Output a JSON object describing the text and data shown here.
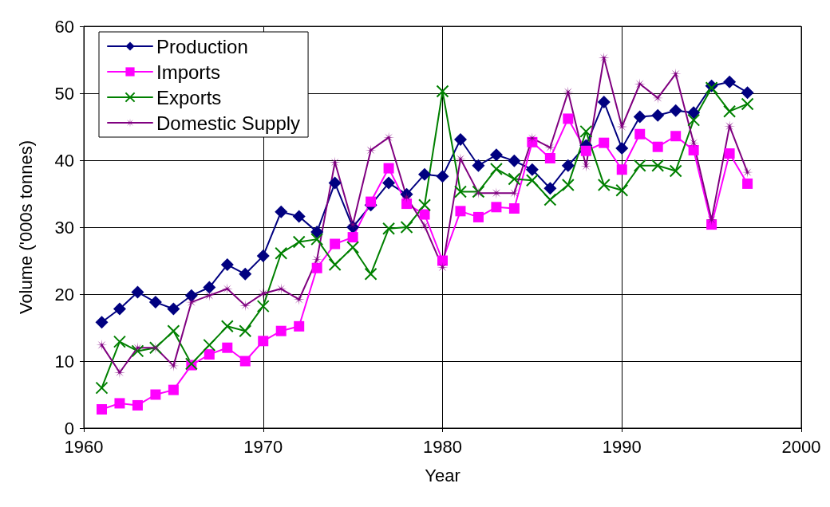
{
  "chart_data": {
    "type": "line",
    "xlabel": "Year",
    "ylabel": "Volume ('000s tonnes)",
    "x": [
      1961,
      1962,
      1963,
      1964,
      1965,
      1966,
      1967,
      1968,
      1969,
      1970,
      1971,
      1972,
      1973,
      1974,
      1975,
      1976,
      1977,
      1978,
      1979,
      1980,
      1981,
      1982,
      1983,
      1984,
      1985,
      1986,
      1987,
      1988,
      1989,
      1990,
      1991,
      1992,
      1993,
      1994,
      1995,
      1996,
      1997
    ],
    "series": [
      {
        "name": "Production",
        "color": "#000080",
        "marker": "diamond",
        "values": [
          15.8,
          17.8,
          20.3,
          18.8,
          17.8,
          19.8,
          21,
          24.4,
          23,
          25.7,
          32.3,
          31.6,
          29.3,
          36.6,
          30,
          33.3,
          36.6,
          34.9,
          37.9,
          37.6,
          43.1,
          39.2,
          40.8,
          39.9,
          38.6,
          35.8,
          39.2,
          42.2,
          48.7,
          41.8,
          46.5,
          46.7,
          47.4,
          47.1,
          51.1,
          51.7,
          50.1
        ]
      },
      {
        "name": "Imports",
        "color": "#ff00ff",
        "marker": "square",
        "values": [
          2.8,
          3.7,
          3.4,
          5,
          5.7,
          9.4,
          11,
          12,
          10,
          13,
          14.5,
          15.2,
          23.9,
          27.5,
          28.5,
          33.8,
          38.8,
          33.5,
          31.9,
          25,
          32.4,
          31.5,
          33,
          32.8,
          42.7,
          40.3,
          46.2,
          41.4,
          42.6,
          38.6,
          43.9,
          42,
          43.6,
          41.5,
          30.4,
          41,
          36.5
        ]
      },
      {
        "name": "Exports",
        "color": "#008000",
        "marker": "cross",
        "values": [
          6,
          12.9,
          11.5,
          12,
          14.5,
          9.6,
          12.4,
          15.2,
          14.5,
          18.2,
          26.1,
          27.8,
          28.2,
          24.4,
          27,
          23,
          29.8,
          30,
          33.3,
          50.3,
          35.3,
          35.3,
          38.7,
          37.2,
          37,
          34.1,
          36.3,
          44.3,
          36.3,
          35.5,
          39.2,
          39.2,
          38.4,
          46,
          50.8,
          47.3,
          48.4
        ]
      },
      {
        "name": "Domestic Supply",
        "color": "#800080",
        "marker": "star",
        "values": [
          12.4,
          8.3,
          12,
          12,
          9.3,
          18.8,
          19.8,
          20.8,
          18.3,
          20.1,
          20.8,
          19.2,
          25.2,
          39.7,
          30.4,
          41.5,
          43.4,
          34.5,
          30.2,
          24,
          40.2,
          35.1,
          35.1,
          35.1,
          43.3,
          41.9,
          50.2,
          39.1,
          55.3,
          45,
          51.4,
          49.3,
          52.9,
          42.6,
          31.1,
          45.1,
          38.2
        ]
      }
    ],
    "xlim": [
      1960,
      2000
    ],
    "xticks": [
      1960,
      1970,
      1980,
      1990,
      2000
    ],
    "ylim": [
      0,
      60
    ],
    "yticks": [
      0,
      10,
      20,
      30,
      40,
      50,
      60
    ],
    "grid": true,
    "legend": "top left",
    "line_style": "solid"
  }
}
